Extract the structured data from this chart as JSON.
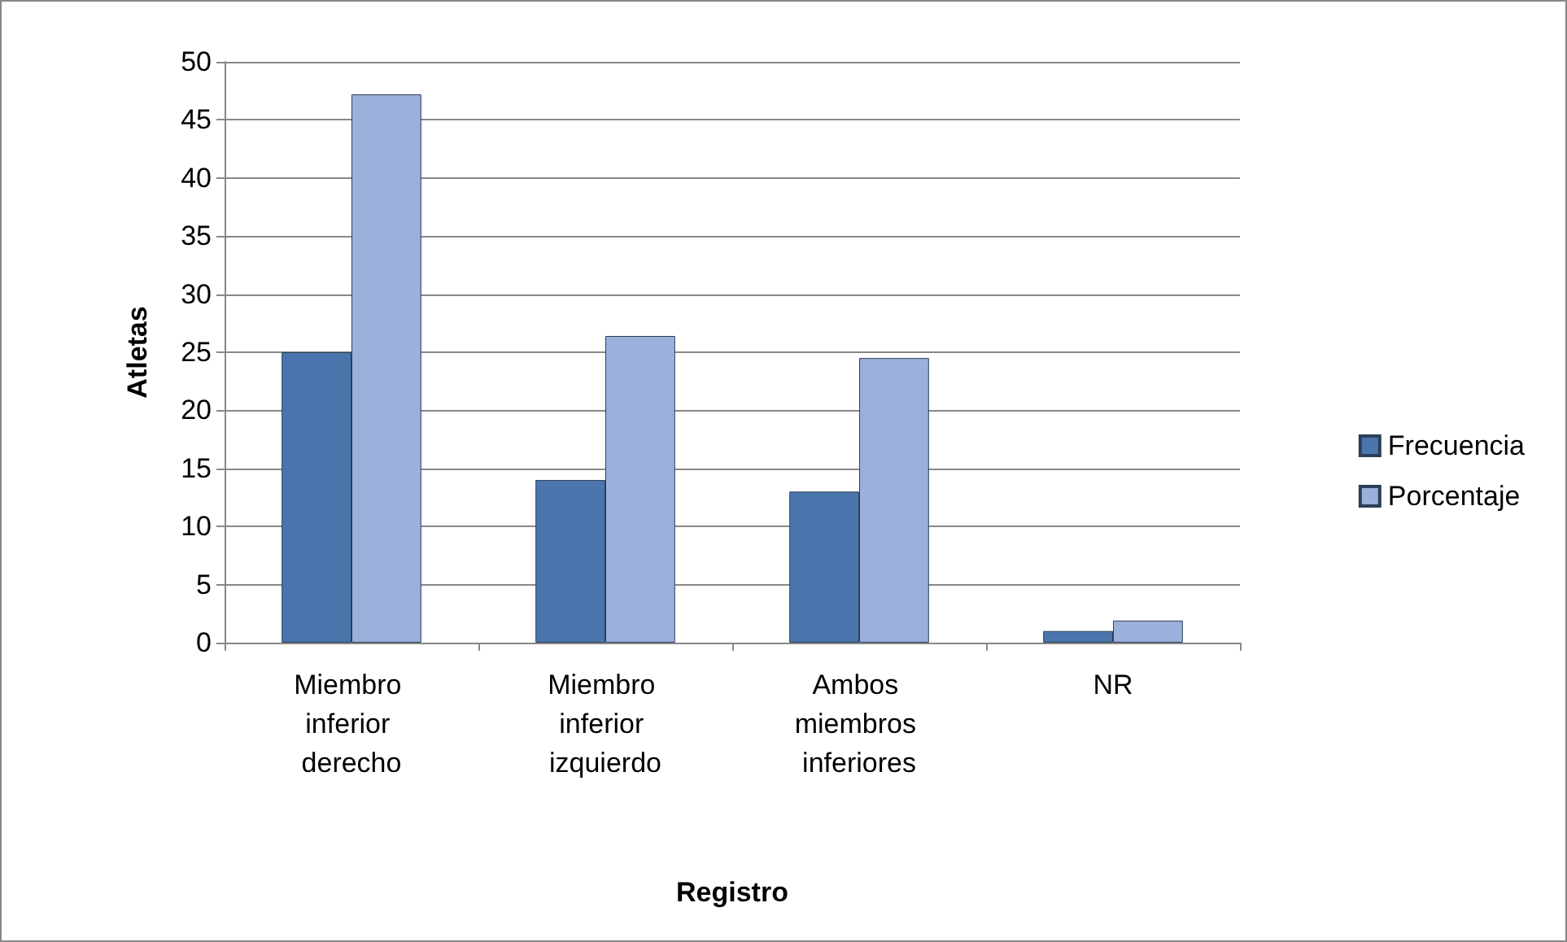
{
  "chart_data": {
    "type": "bar",
    "xlabel": "Registro",
    "ylabel": "Atletas",
    "categories": [
      "Miembro inferior derecho",
      "Miembro inferior izquierdo",
      "Ambos miembros inferiores",
      "NR"
    ],
    "series": [
      {
        "name": "Frecuencia",
        "color": "#4a76ad",
        "values": [
          25,
          14,
          13,
          1
        ]
      },
      {
        "name": "Porcentaje",
        "color": "#9bb0da",
        "values": [
          47.2,
          26.4,
          24.5,
          1.9
        ]
      }
    ],
    "ylim": [
      0,
      50
    ],
    "yticks": [
      0,
      5,
      10,
      15,
      20,
      25,
      30,
      35,
      40,
      45,
      50
    ],
    "grid": "y",
    "legend": "right"
  }
}
